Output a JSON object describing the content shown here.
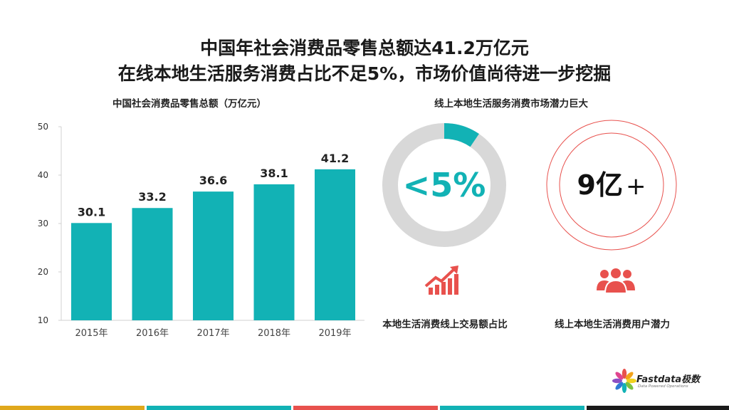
{
  "title": {
    "line1": "中国年社会消费品零售总额达41.2万亿元",
    "line2": "在线本地生活服务消费占比不足5%，市场价值尚待进一步挖掘"
  },
  "chart_data": {
    "type": "bar",
    "title": "中国社会消费品零售总额（万亿元）",
    "categories": [
      "2015年",
      "2016年",
      "2017年",
      "2018年",
      "2019年"
    ],
    "values": [
      30.1,
      33.2,
      36.6,
      38.1,
      41.2
    ],
    "yticks": [
      10,
      20,
      30,
      40,
      50
    ],
    "ylim": [
      10,
      50
    ],
    "grid": false,
    "bar_color": "#12b2b5"
  },
  "right_panel": {
    "title": "线上本地生活服务消费市场潜力巨大",
    "donut": {
      "text": "<5%",
      "fraction": 0.05,
      "color": "#12b2b5",
      "track_color": "#d8d8d8"
    },
    "ring": {
      "number": "9亿",
      "plus": "+",
      "color": "#e8514d"
    },
    "caption_left": "本地生活消费线上交易额占比",
    "caption_right": "线上本地生活消费用户潜力",
    "icon_left": "growth-chart-icon",
    "icon_right": "user-group-icon",
    "accent_red": "#e8514d"
  },
  "logo": {
    "name": "Fastdata极数",
    "tagline": "Data Powered Operations"
  },
  "bottom_strip_colors": [
    "#e0a81c",
    "#12b2b5",
    "#e8514d",
    "#12b2b5",
    "#1a1a1a"
  ]
}
